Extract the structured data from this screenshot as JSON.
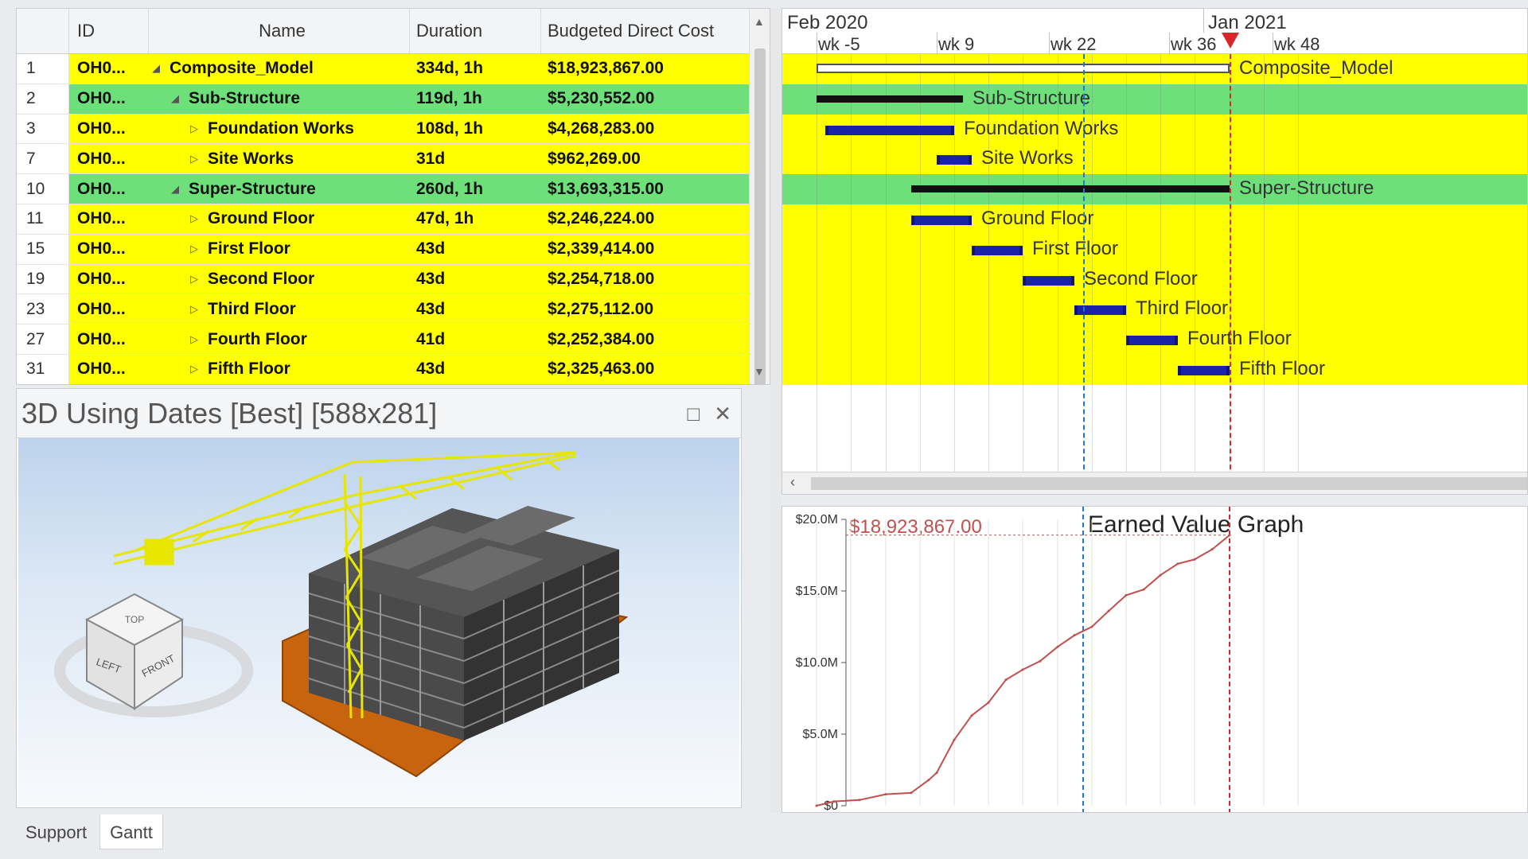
{
  "grid": {
    "columns": {
      "id": "ID",
      "name": "Name",
      "duration": "Duration",
      "cost": "Budgeted Direct Cost"
    },
    "rows": [
      {
        "num": "1",
        "id": "OH0...",
        "name": "Composite_Model",
        "duration": "334d, 1h",
        "cost": "$18,923,867.00",
        "kind": "project",
        "toggle": "◢"
      },
      {
        "num": "2",
        "id": "OH0...",
        "name": "Sub-Structure",
        "duration": "119d, 1h",
        "cost": "$5,230,552.00",
        "kind": "summary",
        "toggle": "◢"
      },
      {
        "num": "3",
        "id": "OH0...",
        "name": "Foundation Works",
        "duration": "108d, 1h",
        "cost": "$4,268,283.00",
        "kind": "task",
        "toggle": "▷"
      },
      {
        "num": "7",
        "id": "OH0...",
        "name": "Site Works",
        "duration": "31d",
        "cost": "$962,269.00",
        "kind": "task",
        "toggle": "▷"
      },
      {
        "num": "10",
        "id": "OH0...",
        "name": "Super-Structure",
        "duration": "260d, 1h",
        "cost": "$13,693,315.00",
        "kind": "summary",
        "toggle": "◢"
      },
      {
        "num": "11",
        "id": "OH0...",
        "name": "Ground Floor",
        "duration": "47d, 1h",
        "cost": "$2,246,224.00",
        "kind": "task",
        "toggle": "▷"
      },
      {
        "num": "15",
        "id": "OH0...",
        "name": "First Floor",
        "duration": "43d",
        "cost": "$2,339,414.00",
        "kind": "task",
        "toggle": "▷"
      },
      {
        "num": "19",
        "id": "OH0...",
        "name": "Second Floor",
        "duration": "43d",
        "cost": "$2,254,718.00",
        "kind": "task",
        "toggle": "▷"
      },
      {
        "num": "23",
        "id": "OH0...",
        "name": "Third Floor",
        "duration": "43d",
        "cost": "$2,275,112.00",
        "kind": "task",
        "toggle": "▷"
      },
      {
        "num": "27",
        "id": "OH0...",
        "name": "Fourth Floor",
        "duration": "41d",
        "cost": "$2,252,384.00",
        "kind": "task",
        "toggle": "▷"
      },
      {
        "num": "31",
        "id": "OH0...",
        "name": "Fifth Floor",
        "duration": "43d",
        "cost": "$2,325,463.00",
        "kind": "task",
        "toggle": "▷"
      }
    ]
  },
  "viewer": {
    "title": "3D Using Dates [Best] [588x281]",
    "cube_faces": [
      "TOP",
      "LEFT",
      "FRONT"
    ]
  },
  "gantt": {
    "months": [
      "Feb 2020",
      "Jan 2021"
    ],
    "weeks": [
      "wk -5",
      "wk 9",
      "wk 22",
      "wk 36",
      "wk 48"
    ],
    "bars": [
      {
        "label": "Composite_Model",
        "start_wk": -5,
        "end_wk": 43
      },
      {
        "label": "Sub-Structure",
        "start_wk": -5,
        "end_wk": 12
      },
      {
        "label": "Foundation Works",
        "start_wk": -4,
        "end_wk": 11
      },
      {
        "label": "Site Works",
        "start_wk": 9,
        "end_wk": 13
      },
      {
        "label": "Super-Structure",
        "start_wk": 6,
        "end_wk": 43
      },
      {
        "label": "Ground Floor",
        "start_wk": 6,
        "end_wk": 13
      },
      {
        "label": "First Floor",
        "start_wk": 13,
        "end_wk": 19
      },
      {
        "label": "Second Floor",
        "start_wk": 19,
        "end_wk": 25
      },
      {
        "label": "Third Floor",
        "start_wk": 25,
        "end_wk": 31
      },
      {
        "label": "Fourth Floor",
        "start_wk": 31,
        "end_wk": 37
      },
      {
        "label": "Fifth Floor",
        "start_wk": 37,
        "end_wk": 43
      }
    ],
    "today_line_wk": 43,
    "blue_line_wk": 26,
    "colors": {
      "project": "#ffff00",
      "summary": "#6ee07a",
      "bar": "#1a22a8",
      "summary_bar": "#111111",
      "today": "#d62828",
      "blue_line": "#1f78d1"
    }
  },
  "earned_value": {
    "title": "Earned Value Graph",
    "total_label": "$18,923,867.00",
    "y_ticks": [
      "$20.0M",
      "$15.0M",
      "$10.0M",
      "$5.0M",
      "$0"
    ]
  },
  "chart_data": {
    "type": "line",
    "title": "Earned Value Graph",
    "xlabel": "",
    "ylabel": "",
    "ylim": [
      0,
      20
    ],
    "series": [
      {
        "x_wk": [
          -5,
          -3,
          0,
          3,
          6,
          8,
          9,
          11,
          13,
          15,
          17,
          19,
          21,
          23,
          25,
          27,
          29,
          31,
          33,
          35,
          37,
          39,
          41,
          43
        ],
        "values": [
          0.0,
          0.3,
          0.4,
          0.8,
          0.9,
          1.8,
          2.3,
          4.6,
          6.3,
          7.2,
          8.8,
          9.5,
          10.1,
          11.1,
          11.9,
          12.5,
          13.6,
          14.7,
          15.1,
          16.1,
          16.9,
          17.2,
          17.9,
          18.9
        ]
      }
    ]
  },
  "tabs": [
    {
      "label": "Support",
      "active": false
    },
    {
      "label": "Gantt",
      "active": true
    }
  ]
}
